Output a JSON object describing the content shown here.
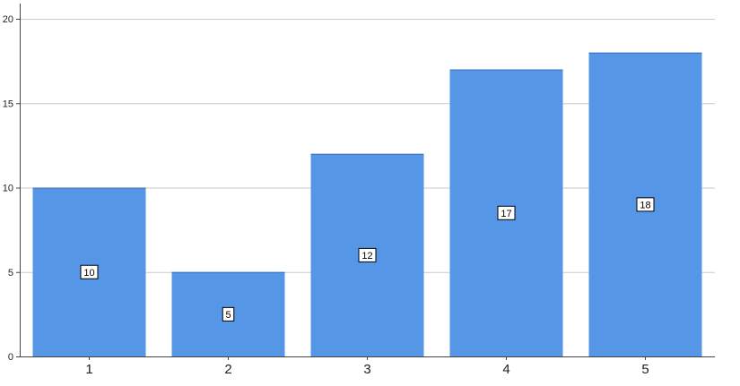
{
  "chart_data": {
    "type": "bar",
    "categories": [
      "1",
      "2",
      "3",
      "4",
      "5"
    ],
    "values": [
      10,
      5,
      12,
      17,
      18
    ],
    "data_labels": [
      "10",
      "5",
      "12",
      "17",
      "18"
    ],
    "y_ticks": [
      0,
      5,
      10,
      15,
      20
    ],
    "y_tick_labels": [
      "0",
      "5",
      "10",
      "15",
      "20"
    ],
    "ylim": [
      0,
      20
    ],
    "title": "",
    "xlabel": "",
    "ylabel": "",
    "grid": true,
    "legend": "none",
    "colors": {
      "bar": "#5596e6",
      "grid": "#c8c8c8",
      "axis": "#444444"
    }
  }
}
